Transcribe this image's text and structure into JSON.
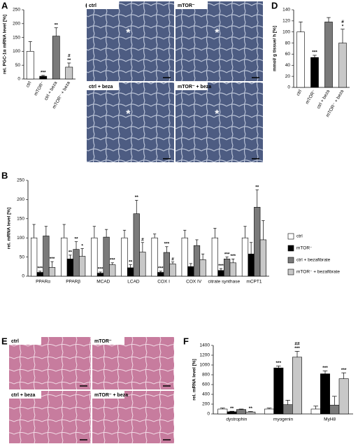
{
  "chart_data": [
    {
      "type": "bar",
      "label": "A",
      "ylabel": "rel. PGC-1α mRNA level [%]",
      "categories": [
        "ctrl",
        "mTOR⁻",
        "ctrl + beza",
        "mTOR⁻ + beza"
      ],
      "values": [
        100,
        10,
        155,
        43
      ],
      "errors": [
        35,
        3,
        30,
        15
      ],
      "colors": [
        "#ffffff",
        "#000000",
        "#7a7a7a",
        "#c8c8c8"
      ],
      "annotations": [
        [],
        [
          "***"
        ],
        [
          "**"
        ],
        [
          "#",
          "**"
        ]
      ],
      "ylim": [
        0,
        250
      ],
      "yticks": [
        0,
        50,
        100,
        150,
        200,
        250
      ]
    },
    {
      "type": "bar",
      "label": "B",
      "ylabel": "rel. mRNA level [%]",
      "categories": [
        "PPARα",
        "PPARβ",
        "MCAD",
        "LCAD",
        "COX I",
        "COX IV",
        "citrate synthase",
        "mCPT1"
      ],
      "series": [
        {
          "name": "ctrl",
          "color": "#ffffff",
          "values": [
            100,
            100,
            100,
            100,
            100,
            100,
            100,
            100
          ],
          "errors": [
            35,
            35,
            30,
            20,
            10,
            20,
            25,
            30
          ],
          "annotations": [
            [],
            [],
            [],
            [],
            [],
            [],
            [],
            []
          ]
        },
        {
          "name": "mTOR⁻",
          "color": "#000000",
          "values": [
            10,
            45,
            8,
            22,
            10,
            25,
            15,
            58
          ],
          "errors": [
            3,
            10,
            3,
            8,
            3,
            8,
            5,
            30
          ],
          "annotations": [
            [
              "***"
            ],
            [
              "**"
            ],
            [
              "***"
            ],
            [
              "**"
            ],
            [
              "***"
            ],
            [],
            [
              "***"
            ],
            []
          ]
        },
        {
          "name": "ctrl + bezafibrate",
          "color": "#7a7a7a",
          "values": [
            105,
            70,
            102,
            163,
            62,
            80,
            45,
            180
          ],
          "errors": [
            25,
            20,
            20,
            35,
            15,
            15,
            5,
            45
          ],
          "annotations": [
            [],
            [
              "**"
            ],
            [],
            [
              "**"
            ],
            [
              "***"
            ],
            [],
            [
              "***"
            ],
            [
              "**"
            ]
          ]
        },
        {
          "name": "mTOR⁻ + bezafibrate",
          "color": "#c8c8c8",
          "values": [
            23,
            52,
            30,
            63,
            32,
            43,
            35,
            95
          ],
          "errors": [
            15,
            20,
            5,
            25,
            5,
            15,
            10,
            50
          ],
          "annotations": [
            [
              "***"
            ],
            [
              "*"
            ],
            [
              "***"
            ],
            [
              "#"
            ],
            [
              "#"
            ],
            [],
            [
              "***"
            ],
            []
          ]
        }
      ],
      "legend": "right",
      "ylim": [
        0,
        250
      ],
      "yticks": [
        0,
        50,
        100,
        150,
        200,
        250
      ]
    },
    {
      "type": "bar",
      "label": "D",
      "ylabel": "mmol/ g tissue/ h [%]",
      "categories": [
        "ctrl",
        "mTOR⁻",
        "ctrl + beza",
        "mTOR⁻ + beza"
      ],
      "values": [
        100,
        54,
        118,
        80
      ],
      "errors": [
        18,
        4,
        8,
        25
      ],
      "colors": [
        "#ffffff",
        "#000000",
        "#7a7a7a",
        "#c8c8c8"
      ],
      "annotations": [
        [],
        [
          "***"
        ],
        [],
        [
          "#",
          "*"
        ]
      ],
      "ylim": [
        0,
        140
      ],
      "yticks": [
        0,
        20,
        40,
        60,
        80,
        100,
        120,
        140
      ]
    },
    {
      "type": "bar",
      "label": "F",
      "ylabel": "rel. mRNA level [%]",
      "categories": [
        "dystrophin",
        "myogenin",
        "MyH8"
      ],
      "series": [
        {
          "color": "#ffffff",
          "values": [
            100,
            100,
            100
          ],
          "errors": [
            20,
            20,
            60
          ],
          "annotations": [
            [],
            [],
            []
          ]
        },
        {
          "color": "#000000",
          "values": [
            45,
            940,
            820
          ],
          "errors": [
            10,
            40,
            60
          ],
          "annotations": [
            [
              "**"
            ],
            [
              "***"
            ],
            [
              "***"
            ]
          ]
        },
        {
          "color": "#7a7a7a",
          "values": [
            90,
            190,
            180
          ],
          "errors": [
            10,
            90,
            180
          ],
          "annotations": [
            [],
            [],
            []
          ]
        },
        {
          "color": "#c8c8c8",
          "values": [
            40,
            1160,
            720
          ],
          "errors": [
            10,
            120,
            120
          ],
          "annotations": [
            [
              "**"
            ],
            [
              "##",
              "***"
            ],
            [
              "***"
            ]
          ]
        }
      ],
      "ylim": [
        0,
        1400
      ],
      "yticks": [
        0,
        200,
        400,
        600,
        800,
        1000,
        1200,
        1400
      ]
    }
  ],
  "micrographs": [
    {
      "label": "C",
      "tiles": [
        "ctrl",
        "mTOR⁻",
        "ctrl + beza",
        "mTOR⁻ + beza"
      ],
      "marker": "*"
    },
    {
      "label": "E",
      "tiles": [
        "ctrl",
        "mTOR⁻",
        "ctrl + beza",
        "mTOR⁻ + beza"
      ]
    }
  ]
}
